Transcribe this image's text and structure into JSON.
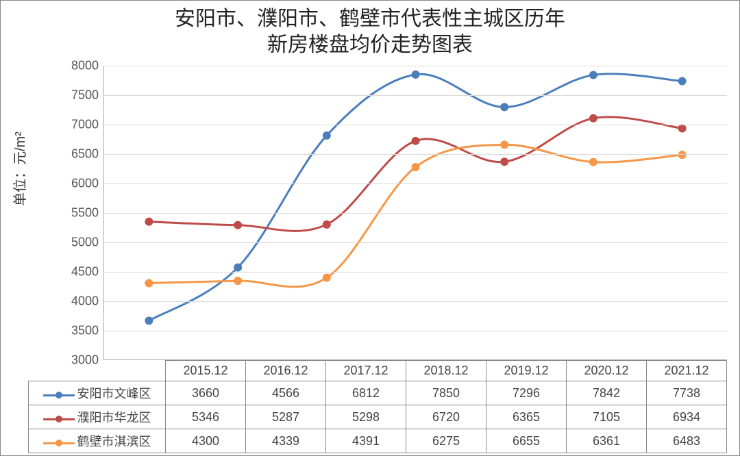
{
  "title_line1": "安阳市、濮阳市、鹤壁市代表性主城区历年",
  "title_line2": "新房楼盘均价走势图表",
  "yaxis_label": "单位：元/m²",
  "chart": {
    "type": "line",
    "ylim": [
      3000,
      8000
    ],
    "ytick_step": 500,
    "categories": [
      "2015.12",
      "2016.12",
      "2017.12",
      "2018.12",
      "2019.12",
      "2020.12",
      "2021.12"
    ],
    "grid_color": "#d9d9d9",
    "background_color": "#ffffff",
    "axis_color": "#aaaaaa",
    "tick_fontsize": 18,
    "title_fontsize": 30,
    "label_fontsize": 20,
    "line_width": 3,
    "marker_size": 6,
    "series": [
      {
        "name": "安阳市文峰区",
        "color": "#4a7ebb",
        "marker_color": "#4a7ebb",
        "values": [
          3660,
          4566,
          6812,
          7850,
          7296,
          7842,
          7738
        ]
      },
      {
        "name": "濮阳市华龙区",
        "color": "#be4b48",
        "marker_color": "#be4b48",
        "values": [
          5346,
          5287,
          5298,
          6720,
          6365,
          7105,
          6934
        ]
      },
      {
        "name": "鹤壁市淇滨区",
        "color": "#f79646",
        "marker_color": "#f79646",
        "values": [
          4300,
          4339,
          4391,
          6275,
          6655,
          6361,
          6483
        ]
      }
    ]
  },
  "table": {
    "legend_col_width": 200,
    "border_color": "#888888"
  }
}
